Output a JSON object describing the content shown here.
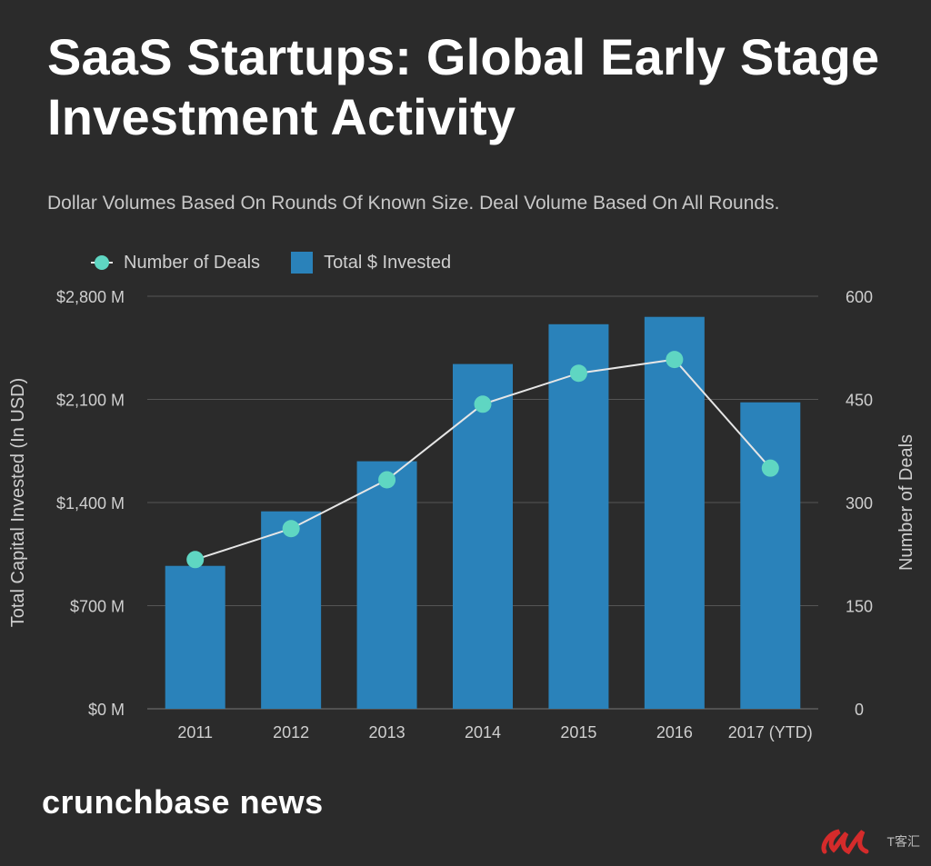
{
  "title": "SaaS Startups: Global Early Stage Investment Activity",
  "subtitle": "Dollar Volumes Based On Rounds Of Known Size. Deal Volume Based On All Rounds.",
  "legend": {
    "line_label": "Number of Deals",
    "bar_label": "Total $ Invested"
  },
  "colors": {
    "bar": "#2a82ba",
    "line": "#e6e6e6",
    "dot": "#5fd6c2",
    "grid": "#555555",
    "axis_text": "#cfcfcf"
  },
  "chart_data": {
    "type": "bar",
    "categories": [
      "2011",
      "2012",
      "2013",
      "2014",
      "2015",
      "2016",
      "2017 (YTD)"
    ],
    "series": [
      {
        "name": "Total $ Invested",
        "type": "bar",
        "axis": "left",
        "values": [
          970,
          1340,
          1680,
          2340,
          2610,
          2660,
          2080
        ]
      },
      {
        "name": "Number of Deals",
        "type": "line",
        "axis": "right",
        "values": [
          217,
          262,
          333,
          443,
          488,
          508,
          350
        ]
      }
    ],
    "ylabel_left": "Total Capital Invested (In USD)",
    "ylabel_right": "Number of Deals",
    "ylim_left": [
      0,
      2800
    ],
    "ylim_right": [
      0,
      600
    ],
    "yticks_left": [
      "$0 M",
      "$700 M",
      "$1,400 M",
      "$2,100 M",
      "$2,800 M"
    ],
    "yticks_right": [
      "0",
      "150",
      "300",
      "450",
      "600"
    ],
    "grid": true,
    "legend_position": "top-left"
  },
  "brand": {
    "logo_text": "crunchbase news",
    "watermark_text": "T客汇"
  }
}
